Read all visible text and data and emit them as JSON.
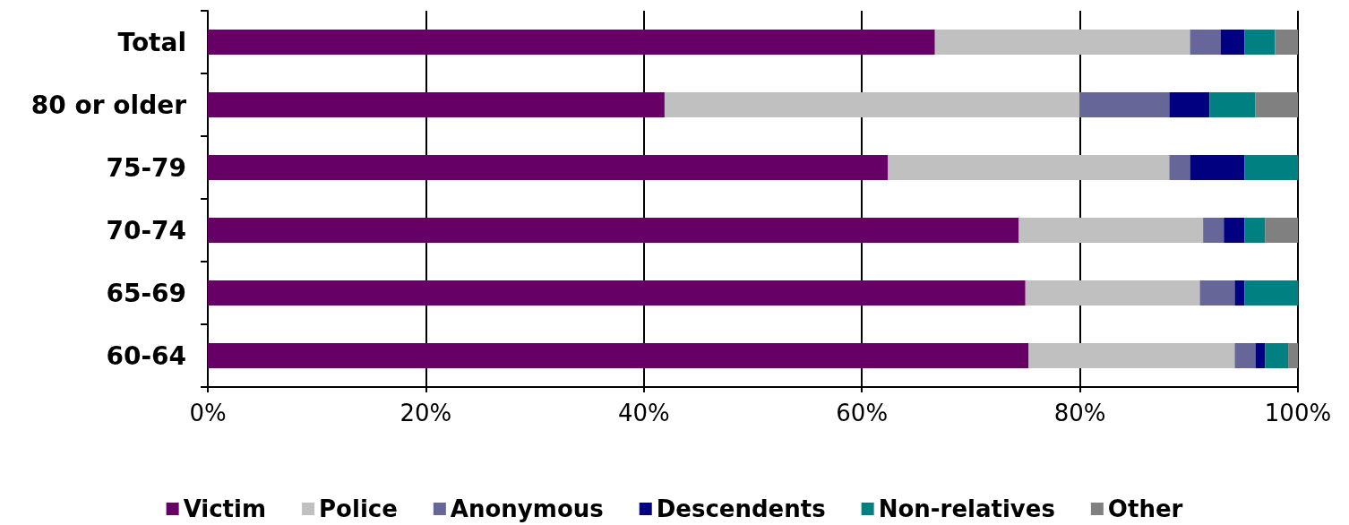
{
  "chart_data": {
    "type": "bar",
    "orientation": "horizontal",
    "stacked": true,
    "categories": [
      "Total",
      "80 or older",
      "75-79",
      "70-74",
      "65-69",
      "60-64"
    ],
    "series": [
      {
        "name": "Victim",
        "color": "#660066",
        "values": [
          66.7,
          41.9,
          62.4,
          74.4,
          75.0,
          75.3
        ]
      },
      {
        "name": "Police",
        "color": "#c0c0c0",
        "values": [
          23.4,
          38.1,
          25.8,
          16.9,
          16.0,
          18.9
        ]
      },
      {
        "name": "Anonymous",
        "color": "#666699",
        "values": [
          2.8,
          8.2,
          1.9,
          1.9,
          3.2,
          1.9
        ]
      },
      {
        "name": "Descendents",
        "color": "#000080",
        "values": [
          2.2,
          3.7,
          5.0,
          1.9,
          0.9,
          0.9
        ]
      },
      {
        "name": "Non-relatives",
        "color": "#008080",
        "values": [
          2.8,
          4.2,
          4.9,
          1.9,
          4.9,
          2.1
        ]
      },
      {
        "name": "Other",
        "color": "#808080",
        "values": [
          2.1,
          3.9,
          0,
          3.0,
          0,
          0.9
        ]
      }
    ],
    "xlim": [
      0,
      100
    ],
    "xticks": [
      {
        "value": 0,
        "label": "0%"
      },
      {
        "value": 20,
        "label": "20%"
      },
      {
        "value": 40,
        "label": "40%"
      },
      {
        "value": 60,
        "label": "60%"
      },
      {
        "value": 80,
        "label": "80%"
      },
      {
        "value": 100,
        "label": "100%"
      }
    ],
    "grid": "x",
    "legend": "bottom"
  }
}
